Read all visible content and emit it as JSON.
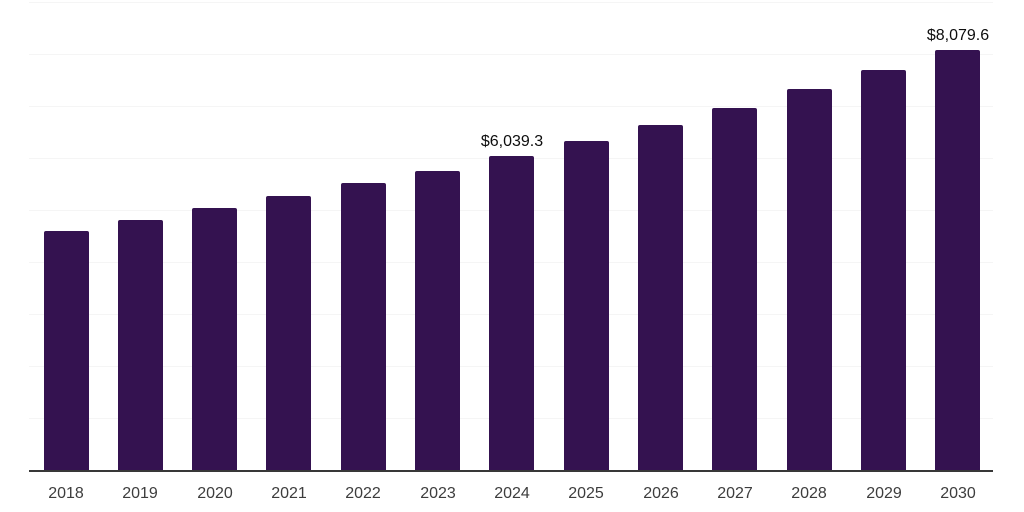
{
  "chart_data": {
    "type": "bar",
    "title": "",
    "xlabel": "",
    "ylabel": "",
    "categories": [
      "2018",
      "2019",
      "2020",
      "2021",
      "2022",
      "2023",
      "2024",
      "2025",
      "2026",
      "2027",
      "2028",
      "2029",
      "2030"
    ],
    "values": [
      4600,
      4810,
      5040,
      5270,
      5515,
      5755,
      6039.3,
      6320,
      6640,
      6965,
      7330,
      7700,
      8079.6
    ],
    "data_labels": [
      {
        "category": "2024",
        "text": "$6,039.3"
      },
      {
        "category": "2030",
        "text": "$8,079.6"
      }
    ],
    "ylim": [
      0,
      9000
    ],
    "grid_step": 1000,
    "grid": "horizontal-only",
    "y_tick_labels_visible": false,
    "legend": "none",
    "colors": {
      "bar": "#341250",
      "gridline": "#f5f5f5",
      "axis_line": "#383838",
      "tick_label": "#3d3d3d",
      "data_label": "#0d0d0d",
      "background": "#ffffff"
    }
  }
}
